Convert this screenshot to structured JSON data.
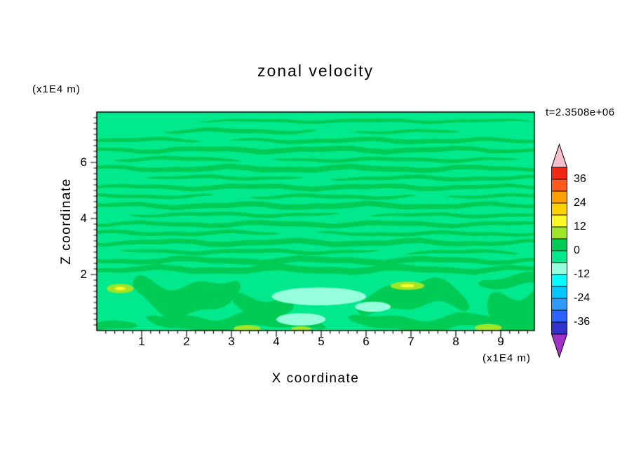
{
  "chart_data": {
    "type": "heatmap",
    "title": "zonal velocity",
    "time_label": "t=2.3508e+06",
    "xlabel": "X coordinate",
    "ylabel": "Z coordinate",
    "x_unit": "(x1E4 m)",
    "y_unit": "(x1E4 m)",
    "xlim": [
      0,
      9.75
    ],
    "ylim": [
      0,
      7.8
    ],
    "x_major_ticks": [
      1,
      2,
      3,
      4,
      5,
      6,
      7,
      8,
      9
    ],
    "y_major_ticks": [
      2,
      4,
      6
    ],
    "minor_tick_step": 0.2,
    "contour_levels": {
      "min": -42,
      "max": 42,
      "step": 6
    },
    "colorbar_tick_labels": [
      "36",
      "24",
      "12",
      "0",
      "-12",
      "-24",
      "-36"
    ],
    "colorbar_tick_values": [
      36,
      24,
      12,
      0,
      -12,
      -24,
      -36
    ],
    "band_colors_bottom_to_top": [
      "#3232CD",
      "#2E62FF",
      "#2E9BFF",
      "#00C8FF",
      "#00FFFF",
      "#96FFDC",
      "#00E98C",
      "#00CC55",
      "#A0E628",
      "#FAFA28",
      "#FFD200",
      "#FFA000",
      "#FF5A1E",
      "#F02814"
    ],
    "under_arrow_color": "#A032C8",
    "over_arrow_color": "#F5BECD",
    "field": {
      "background_value": -3,
      "stripes": [
        {
          "x0": 2.3,
          "x1": 9.7,
          "z": 7.48,
          "h": 0.12,
          "value": 3
        },
        {
          "x0": 1.5,
          "x1": 4.9,
          "z": 7.12,
          "h": 0.15,
          "value": 3
        },
        {
          "x0": 5.7,
          "x1": 8.1,
          "z": 7.1,
          "h": 0.11,
          "value": 3
        },
        {
          "x0": 0.0,
          "x1": 2.3,
          "z": 6.8,
          "h": 0.14,
          "value": 3
        },
        {
          "x0": 3.0,
          "x1": 9.75,
          "z": 6.78,
          "h": 0.16,
          "value": 3
        },
        {
          "x0": 0.0,
          "x1": 9.75,
          "z": 6.45,
          "h": 0.19,
          "value": 3
        },
        {
          "x0": 0.4,
          "x1": 3.2,
          "z": 6.12,
          "h": 0.14,
          "value": 3
        },
        {
          "x0": 3.9,
          "x1": 9.4,
          "z": 6.1,
          "h": 0.14,
          "value": 3
        },
        {
          "x0": 0.0,
          "x1": 9.75,
          "z": 5.78,
          "h": 0.2,
          "value": 3
        },
        {
          "x0": 1.1,
          "x1": 4.6,
          "z": 5.46,
          "h": 0.13,
          "value": 3
        },
        {
          "x0": 5.2,
          "x1": 9.75,
          "z": 5.44,
          "h": 0.15,
          "value": 3
        },
        {
          "x0": 0.0,
          "x1": 9.75,
          "z": 5.12,
          "h": 0.18,
          "value": 3
        },
        {
          "x0": 0.0,
          "x1": 2.6,
          "z": 4.8,
          "h": 0.13,
          "value": 3
        },
        {
          "x0": 3.4,
          "x1": 7.1,
          "z": 4.78,
          "h": 0.14,
          "value": 3
        },
        {
          "x0": 7.8,
          "x1": 9.75,
          "z": 4.8,
          "h": 0.12,
          "value": 3
        },
        {
          "x0": 0.0,
          "x1": 9.75,
          "z": 4.46,
          "h": 0.2,
          "value": 3
        },
        {
          "x0": 0.7,
          "x1": 5.4,
          "z": 4.14,
          "h": 0.14,
          "value": 3
        },
        {
          "x0": 6.1,
          "x1": 9.75,
          "z": 4.12,
          "h": 0.13,
          "value": 3
        },
        {
          "x0": 0.0,
          "x1": 9.75,
          "z": 3.8,
          "h": 0.18,
          "value": 3
        },
        {
          "x0": 0.0,
          "x1": 4.1,
          "z": 3.48,
          "h": 0.15,
          "value": 3
        },
        {
          "x0": 4.9,
          "x1": 9.75,
          "z": 3.46,
          "h": 0.14,
          "value": 3
        },
        {
          "x0": 0.0,
          "x1": 9.75,
          "z": 3.14,
          "h": 0.2,
          "value": 3
        },
        {
          "x0": 0.5,
          "x1": 6.3,
          "z": 2.82,
          "h": 0.15,
          "value": 3
        },
        {
          "x0": 6.9,
          "x1": 9.4,
          "z": 2.8,
          "h": 0.13,
          "value": 3
        },
        {
          "x0": 0.0,
          "x1": 9.75,
          "z": 2.5,
          "h": 0.22,
          "value": 3
        },
        {
          "x0": 0.0,
          "x1": 9.75,
          "z": 2.18,
          "h": 0.24,
          "value": 3
        },
        {
          "x0": 0.8,
          "x1": 3.2,
          "z": 1.3,
          "h": 1.05,
          "value": 3
        },
        {
          "x0": 3.0,
          "x1": 4.4,
          "z": 0.95,
          "h": 0.75,
          "value": 3
        },
        {
          "x0": 5.8,
          "x1": 8.3,
          "z": 1.15,
          "h": 0.9,
          "value": 3
        },
        {
          "x0": 1.1,
          "x1": 5.1,
          "z": 0.3,
          "h": 0.55,
          "value": 3
        },
        {
          "x0": 5.6,
          "x1": 9.1,
          "z": 0.28,
          "h": 0.5,
          "value": 3
        },
        {
          "x0": 8.7,
          "x1": 9.75,
          "z": 0.9,
          "h": 1.6,
          "value": 3
        },
        {
          "x0": 8.5,
          "x1": 9.75,
          "z": 1.75,
          "h": 0.4,
          "value": 3
        },
        {
          "x0": 0.0,
          "x1": 0.9,
          "z": 0.15,
          "h": 0.3,
          "value": 3
        }
      ],
      "patches": [
        {
          "cx": 4.95,
          "cy": 1.22,
          "rx": 1.05,
          "ry": 0.32,
          "value": -9
        },
        {
          "cx": 4.55,
          "cy": 0.4,
          "rx": 0.55,
          "ry": 0.22,
          "value": -9
        },
        {
          "cx": 6.15,
          "cy": 0.85,
          "rx": 0.4,
          "ry": 0.18,
          "value": -9
        },
        {
          "cx": 0.52,
          "cy": 1.5,
          "rx": 0.3,
          "ry": 0.17,
          "value": 9
        },
        {
          "cx": 6.92,
          "cy": 1.6,
          "rx": 0.38,
          "ry": 0.15,
          "value": 9
        },
        {
          "cx": 3.35,
          "cy": 0.07,
          "rx": 0.3,
          "ry": 0.13,
          "value": 9
        },
        {
          "cx": 4.55,
          "cy": 0.05,
          "rx": 0.22,
          "ry": 0.1,
          "value": 9
        },
        {
          "cx": 8.72,
          "cy": 0.1,
          "rx": 0.3,
          "ry": 0.14,
          "value": 9
        },
        {
          "cx": 6.92,
          "cy": 1.6,
          "rx": 0.16,
          "ry": 0.06,
          "value": 15
        },
        {
          "cx": 0.52,
          "cy": 1.5,
          "rx": 0.12,
          "ry": 0.06,
          "value": 15
        }
      ]
    }
  }
}
